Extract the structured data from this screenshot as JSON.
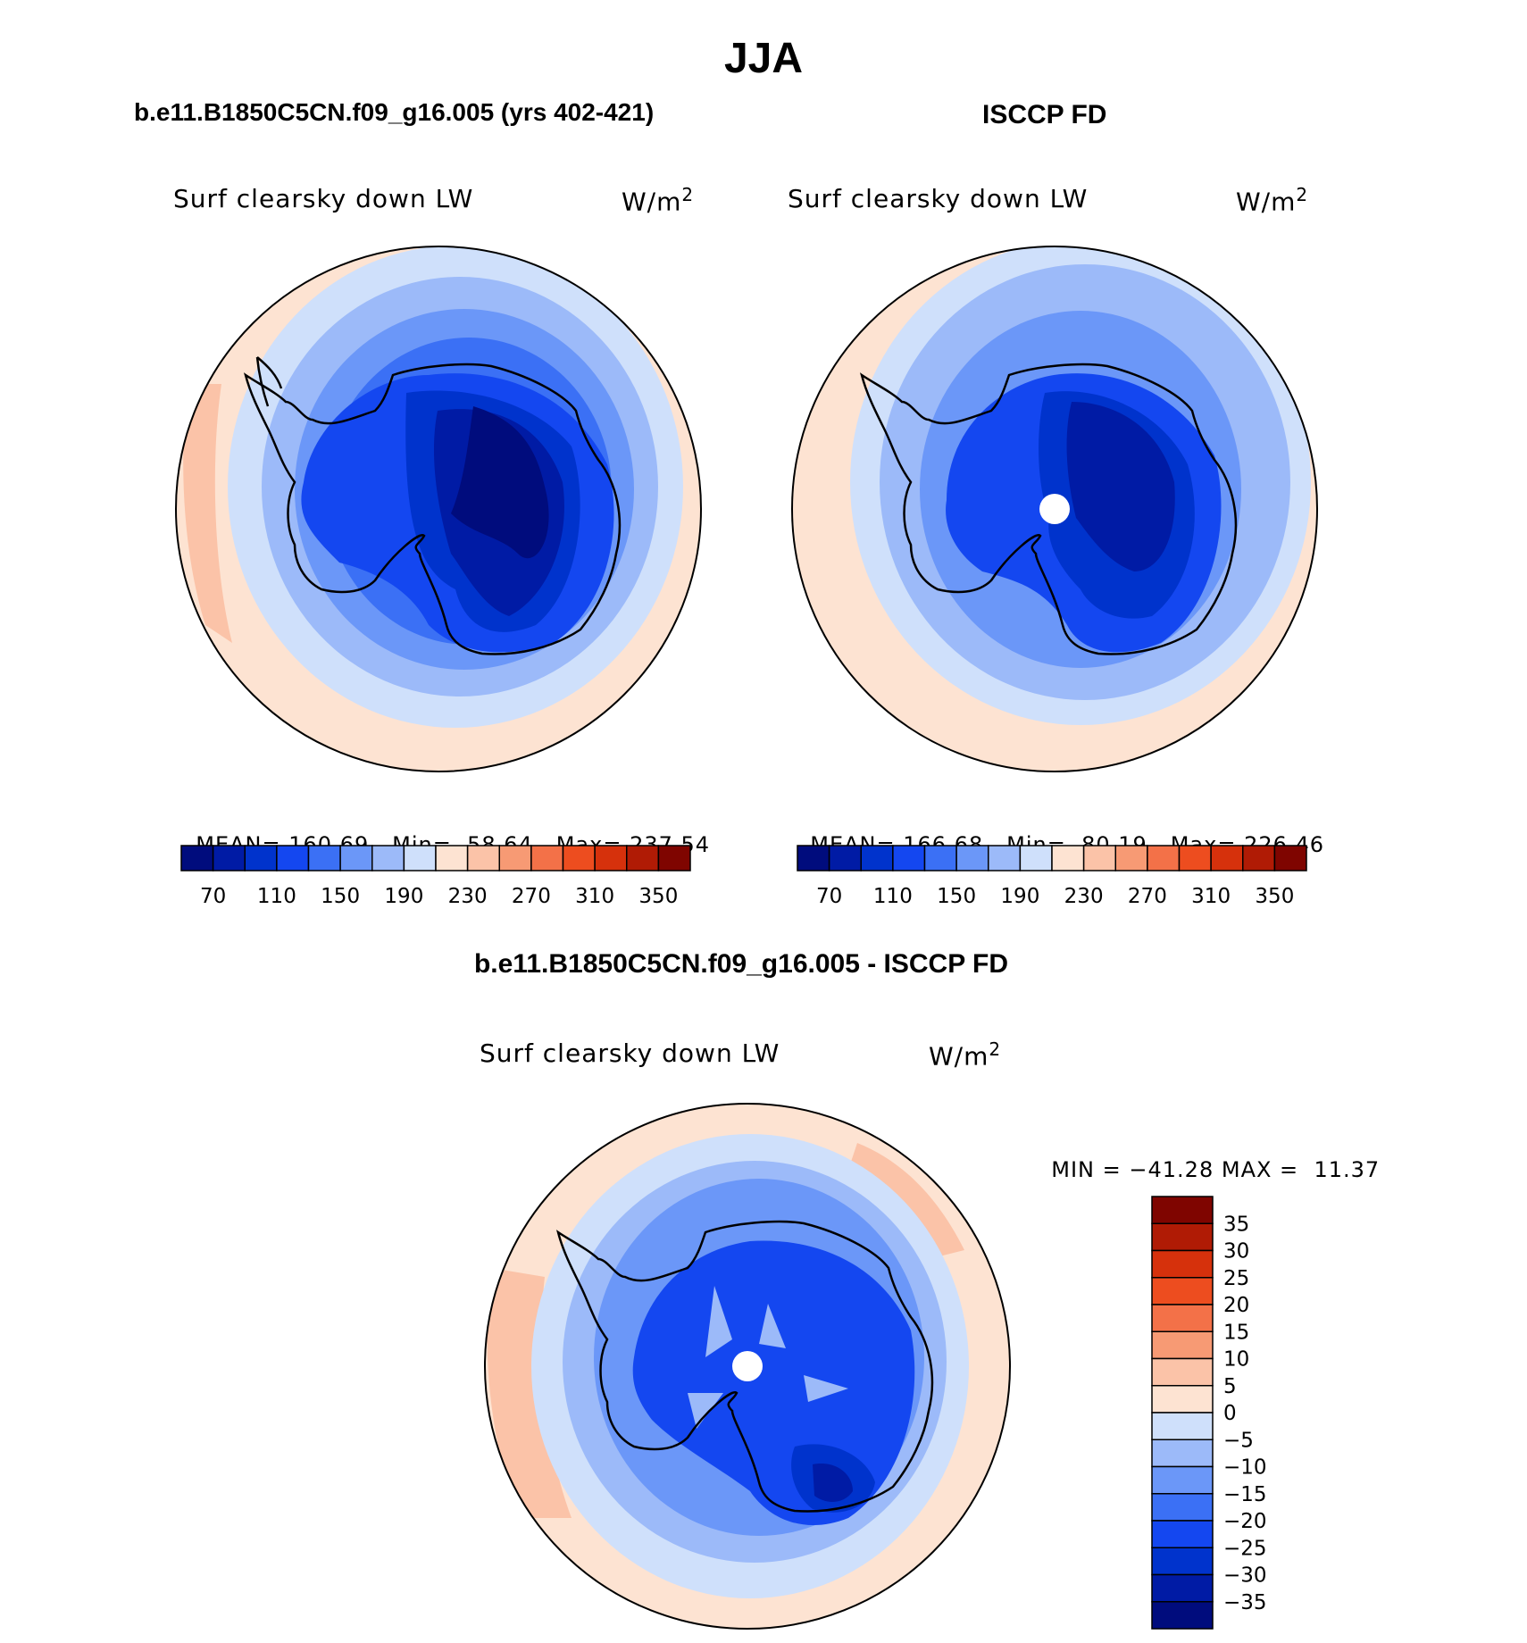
{
  "title": "JJA",
  "panel_model": {
    "heading": "b.e11.B1850C5CN.f09_g16.005 (yrs 402-421)",
    "variable": "Surf clearsky down LW",
    "units": "W/m",
    "units_exp": "2",
    "stats": {
      "mean_label": "MEAN=",
      "mean": "160.69",
      "min_label": "Min=",
      "min": "58.64",
      "max_label": "Max=",
      "max": "237.54"
    }
  },
  "panel_obs": {
    "heading": "ISCCP FD",
    "variable": "Surf clearsky down LW",
    "units": "W/m",
    "units_exp": "2",
    "stats": {
      "mean_label": "MEAN=",
      "mean": "166.68",
      "min_label": "Min=",
      "min": "80.19",
      "max_label": "Max=",
      "max": "226.46"
    }
  },
  "panel_diff": {
    "heading": "b.e11.B1850C5CN.f09_g16.005 - ISCCP FD",
    "variable": "Surf clearsky down LW",
    "units": "W/m",
    "units_exp": "2",
    "stats": {
      "min_label": "MIN =",
      "min": "−41.28",
      "max_label": "MAX =",
      "max": "11.37"
    }
  },
  "colorbar_abs": {
    "colors": [
      "#000c7d",
      "#001ba5",
      "#0033cc",
      "#1447f0",
      "#3b70f5",
      "#6b97f8",
      "#9cbaf9",
      "#cfe0fb",
      "#fde3d2",
      "#fbc3a8",
      "#f79a74",
      "#f37148",
      "#ed4d1f",
      "#d6310c",
      "#b01b05",
      "#7f0500"
    ],
    "tick_labels": [
      "70",
      "110",
      "150",
      "190",
      "230",
      "270",
      "310",
      "350"
    ]
  },
  "colorbar_diff": {
    "colors": [
      "#7f0500",
      "#b01b05",
      "#d6310c",
      "#ed4d1f",
      "#f37148",
      "#f79a74",
      "#fbc3a8",
      "#fde3d2",
      "#cfe0fb",
      "#9cbaf9",
      "#6b97f8",
      "#3b70f5",
      "#1447f0",
      "#0033cc",
      "#001ba5",
      "#000c7d"
    ],
    "tick_labels": [
      "35",
      "30",
      "25",
      "20",
      "15",
      "10",
      "5",
      "0",
      "−5",
      "−10",
      "−15",
      "−20",
      "−25",
      "−30",
      "−35"
    ]
  },
  "map_colors": {
    "ocean_warm": "#fde3d2",
    "ocean_warm2": "#fbc3a8",
    "ring1": "#cfe0fb",
    "ring2": "#9cbaf9",
    "ring3": "#6b97f8",
    "ring4": "#3b70f5",
    "land1": "#1447f0",
    "land2": "#0033cc",
    "land3": "#001ba5",
    "land4": "#000c7d",
    "pole_hole": "#ffffff",
    "coast": "#000000"
  }
}
